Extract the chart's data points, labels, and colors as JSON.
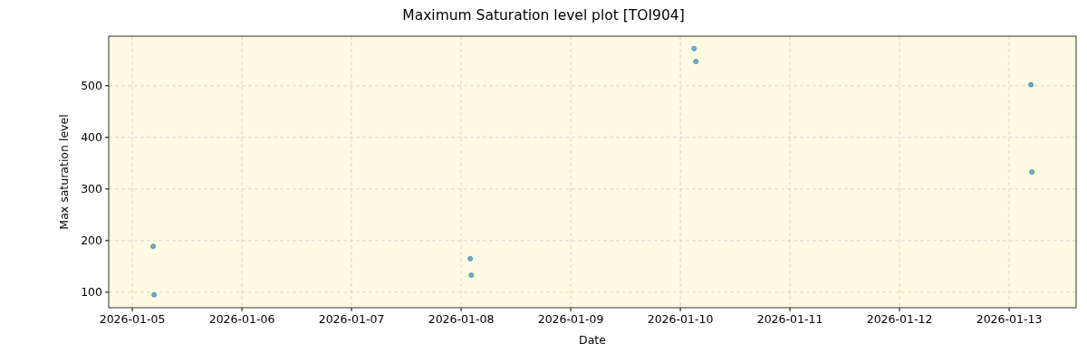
{
  "chart_data": {
    "type": "scatter",
    "title": "Maximum Saturation level plot [TOI904]",
    "xlabel": "Date",
    "ylabel": "Max saturation level",
    "x": [
      "2026-01-05T04:34",
      "2026-01-05T04:46",
      "2026-01-08T02:00",
      "2026-01-08T02:14",
      "2026-01-10T03:00",
      "2026-01-10T03:24",
      "2026-01-13T04:46",
      "2026-01-13T04:58"
    ],
    "series": [
      {
        "color": "#1f77b4",
        "values": [
          189,
          95,
          165,
          133,
          572,
          547,
          502,
          333
        ]
      }
    ],
    "xlim": [
      "2026-01-04T18:50",
      "2026-01-13T14:40"
    ],
    "xticks": [
      "2026-01-05",
      "2026-01-06",
      "2026-01-07",
      "2026-01-08",
      "2026-01-09",
      "2026-01-10",
      "2026-01-11",
      "2026-01-12",
      "2026-01-13"
    ],
    "ylim": [
      70,
      596
    ],
    "yticks": [
      100,
      200,
      300,
      400,
      500
    ],
    "grid": true,
    "marker": "circle"
  }
}
